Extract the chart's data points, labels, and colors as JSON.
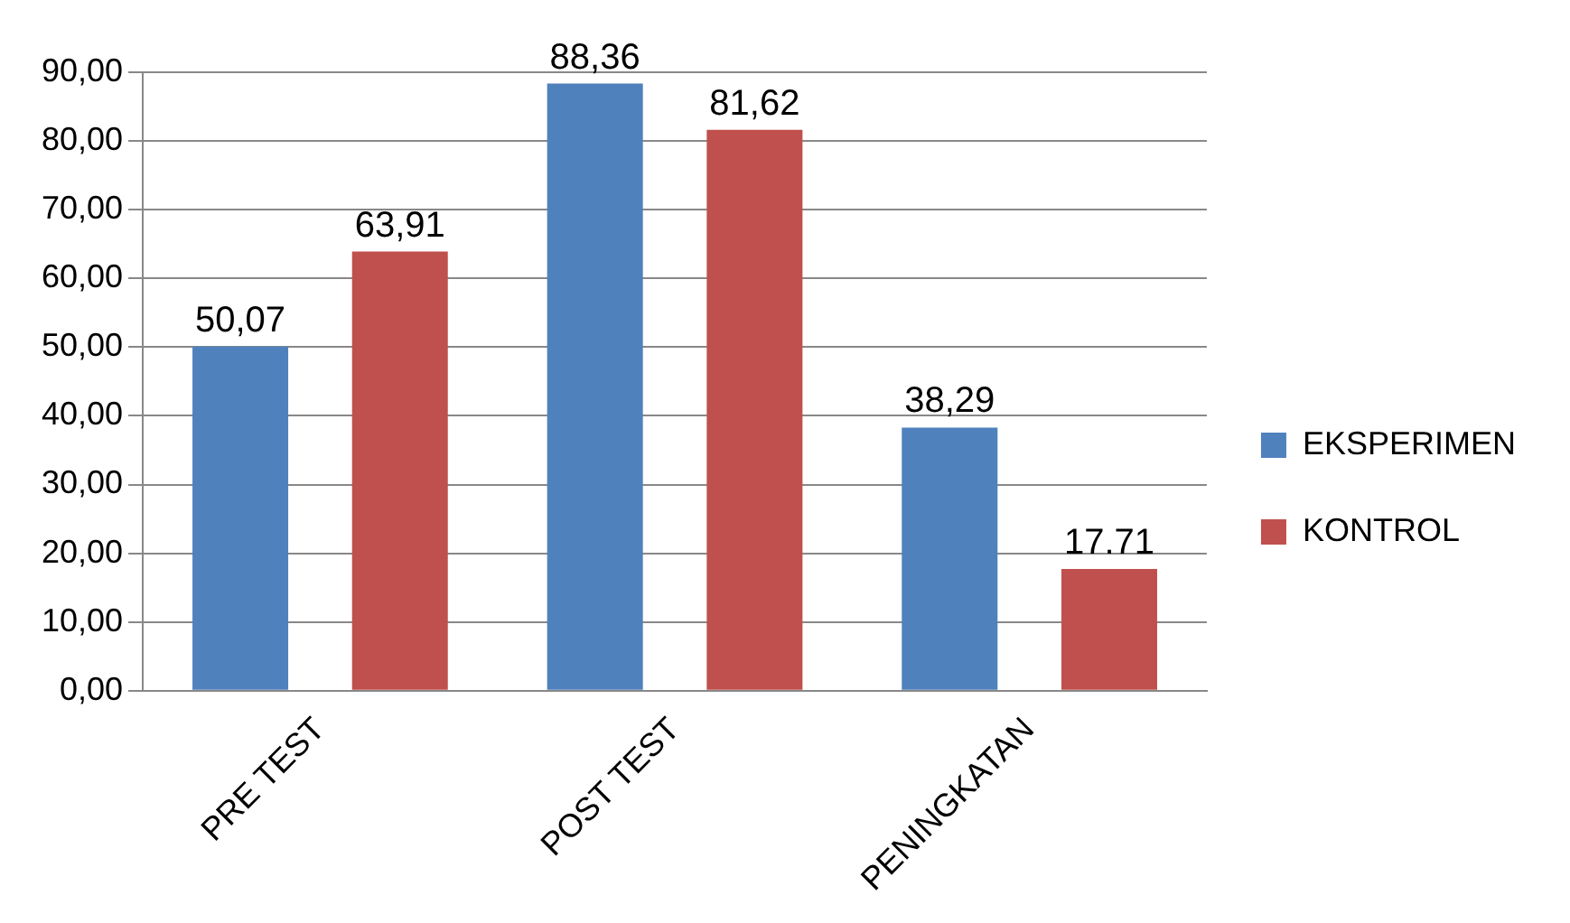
{
  "chart_data": {
    "type": "bar",
    "categories": [
      "PRE TEST",
      "POST TEST",
      "PENINGKATAN"
    ],
    "series": [
      {
        "name": "EKSPERIMEN",
        "color": "#4f81bd",
        "values": [
          50.07,
          88.36,
          38.29
        ],
        "value_labels": [
          "50,07",
          "88,36",
          "38,29"
        ]
      },
      {
        "name": "KONTROL",
        "color": "#c0504d",
        "values": [
          63.91,
          81.62,
          17.71
        ],
        "value_labels": [
          "63,91",
          "81,62",
          "17.71"
        ]
      }
    ],
    "ylim": [
      0,
      90
    ],
    "yticks": [
      {
        "value": 0,
        "label": "0,00"
      },
      {
        "value": 10,
        "label": "10,00"
      },
      {
        "value": 20,
        "label": "20,00"
      },
      {
        "value": 30,
        "label": "30,00"
      },
      {
        "value": 40,
        "label": "40,00"
      },
      {
        "value": 50,
        "label": "50,00"
      },
      {
        "value": 60,
        "label": "60,00"
      },
      {
        "value": 70,
        "label": "70,00"
      },
      {
        "value": 80,
        "label": "80,00"
      },
      {
        "value": 90,
        "label": "90,00"
      }
    ],
    "grid": "y",
    "legend": "right"
  }
}
